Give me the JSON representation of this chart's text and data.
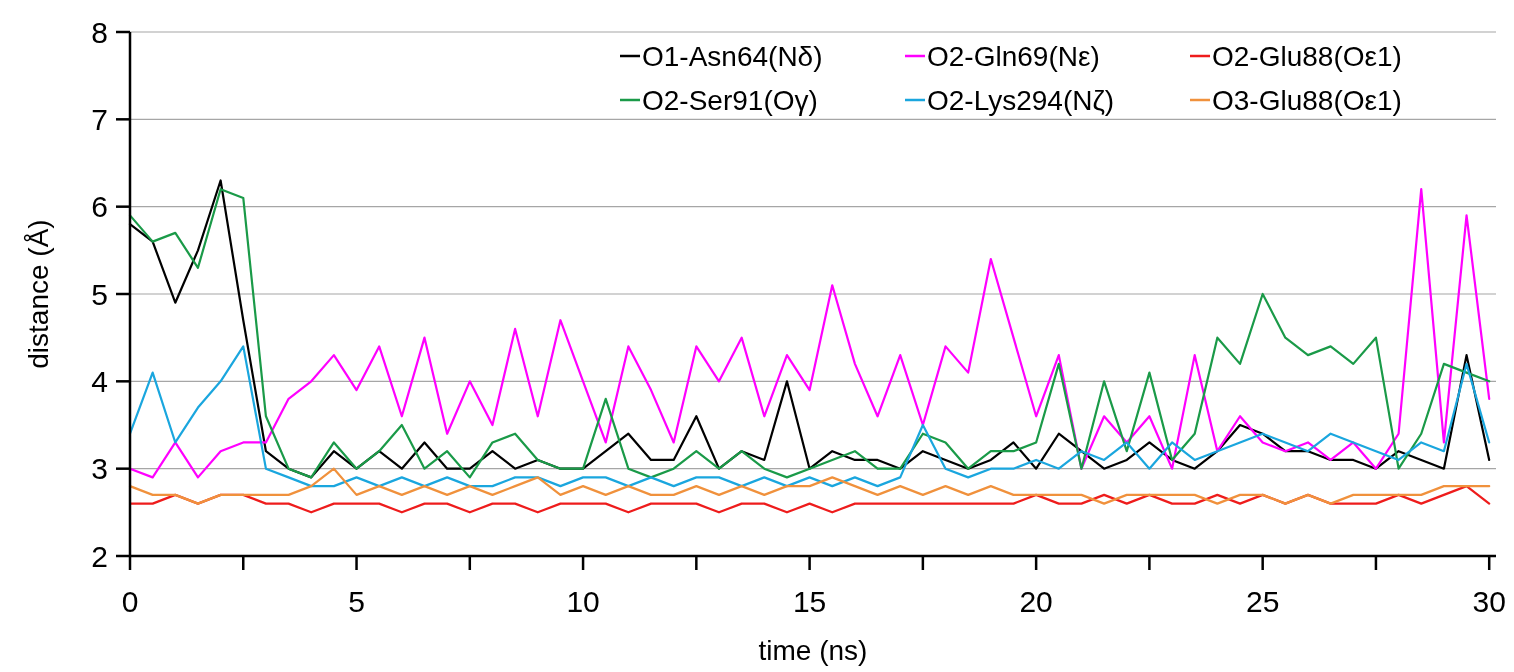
{
  "chart_data": {
    "type": "line",
    "xlabel": "time (ns)",
    "ylabel": "distance (Å)",
    "x": [
      0,
      0.5,
      1,
      1.5,
      2,
      2.5,
      3,
      3.5,
      4,
      4.5,
      5,
      5.5,
      6,
      6.5,
      7,
      7.5,
      8,
      8.5,
      9,
      9.5,
      10,
      10.5,
      11,
      11.5,
      12,
      12.5,
      13,
      13.5,
      14,
      14.5,
      15,
      15.5,
      16,
      16.5,
      17,
      17.5,
      18,
      18.5,
      19,
      19.5,
      20,
      20.5,
      21,
      21.5,
      22,
      22.5,
      23,
      23.5,
      24,
      24.5,
      25,
      25.5,
      26,
      26.5,
      27,
      27.5,
      28,
      28.5,
      29,
      29.5,
      30
    ],
    "xlim": [
      0,
      30.15
    ],
    "ylim": [
      2,
      8
    ],
    "xticks": [
      0,
      {
        "value": 2.5,
        "label": null
      },
      5,
      {
        "value": 7.5,
        "label": null
      },
      10,
      {
        "value": 12.5,
        "label": null
      },
      15,
      {
        "value": 17.5,
        "label": null
      },
      20,
      {
        "value": 22.5,
        "label": null
      },
      25,
      {
        "value": 27.5,
        "label": null
      },
      30
    ],
    "yticks": [
      2,
      3,
      4,
      5,
      6,
      7,
      8
    ],
    "grid": "y",
    "legend": "top right",
    "marker": "none",
    "line_style": "solid",
    "series": [
      {
        "name": "O1-Asn64(Nδ)",
        "color": "#000000",
        "values": [
          5.8,
          5.6,
          4.9,
          5.5,
          6.3,
          4.7,
          3.2,
          3.0,
          2.9,
          3.2,
          3.0,
          3.2,
          3.0,
          3.3,
          3.0,
          3.0,
          3.2,
          3.0,
          3.1,
          3.0,
          3.0,
          3.2,
          3.4,
          3.1,
          3.1,
          3.6,
          3.0,
          3.2,
          3.1,
          4.0,
          3.0,
          3.2,
          3.1,
          3.1,
          3.0,
          3.2,
          3.1,
          3.0,
          3.1,
          3.3,
          3.0,
          3.4,
          3.2,
          3.0,
          3.1,
          3.3,
          3.1,
          3.0,
          3.2,
          3.5,
          3.4,
          3.2,
          3.2,
          3.1,
          3.1,
          3.0,
          3.2,
          3.1,
          3.0,
          4.3,
          3.1
        ]
      },
      {
        "name": "O2-Gln69(Nε)",
        "color": "#ff00ff",
        "values": [
          3.0,
          2.9,
          3.3,
          2.9,
          3.2,
          3.3,
          3.3,
          3.8,
          4.0,
          4.3,
          3.9,
          4.4,
          3.6,
          4.5,
          3.4,
          4.0,
          3.5,
          4.6,
          3.6,
          4.7,
          4.0,
          3.3,
          4.4,
          3.9,
          3.3,
          4.4,
          4.0,
          4.5,
          3.6,
          4.3,
          3.9,
          5.1,
          4.2,
          3.6,
          4.3,
          3.5,
          4.4,
          4.1,
          5.4,
          4.5,
          3.6,
          4.3,
          3.0,
          3.6,
          3.3,
          3.6,
          3.0,
          4.3,
          3.2,
          3.6,
          3.3,
          3.2,
          3.3,
          3.1,
          3.3,
          3.0,
          3.4,
          6.2,
          3.3,
          5.9,
          3.8
        ]
      },
      {
        "name": "O2-Glu88(Oε1)",
        "color": "#ee1c1c",
        "values": [
          2.6,
          2.6,
          2.7,
          2.6,
          2.7,
          2.7,
          2.6,
          2.6,
          2.5,
          2.6,
          2.6,
          2.6,
          2.5,
          2.6,
          2.6,
          2.5,
          2.6,
          2.6,
          2.5,
          2.6,
          2.6,
          2.6,
          2.5,
          2.6,
          2.6,
          2.6,
          2.5,
          2.6,
          2.6,
          2.5,
          2.6,
          2.5,
          2.6,
          2.6,
          2.6,
          2.6,
          2.6,
          2.6,
          2.6,
          2.6,
          2.7,
          2.6,
          2.6,
          2.7,
          2.6,
          2.7,
          2.6,
          2.6,
          2.7,
          2.6,
          2.7,
          2.6,
          2.7,
          2.6,
          2.6,
          2.6,
          2.7,
          2.6,
          2.7,
          2.8,
          2.6
        ]
      },
      {
        "name": "O2-Ser91(Oγ)",
        "color": "#1a9a48",
        "values": [
          5.9,
          5.6,
          5.7,
          5.3,
          6.2,
          6.1,
          3.6,
          3.0,
          2.9,
          3.3,
          3.0,
          3.2,
          3.5,
          3.0,
          3.2,
          2.9,
          3.3,
          3.4,
          3.1,
          3.0,
          3.0,
          3.8,
          3.0,
          2.9,
          3.0,
          3.2,
          3.0,
          3.2,
          3.0,
          2.9,
          3.0,
          3.1,
          3.2,
          3.0,
          3.0,
          3.4,
          3.3,
          3.0,
          3.2,
          3.2,
          3.3,
          4.2,
          3.0,
          4.0,
          3.2,
          4.1,
          3.1,
          3.4,
          4.5,
          4.2,
          5.0,
          4.5,
          4.3,
          4.4,
          4.2,
          4.5,
          3.0,
          3.4,
          4.2,
          4.1,
          4.0
        ]
      },
      {
        "name": "O2-Lys294(Nζ)",
        "color": "#1aa6de",
        "values": [
          3.4,
          4.1,
          3.3,
          3.7,
          4.0,
          4.4,
          3.0,
          2.9,
          2.8,
          2.8,
          2.9,
          2.8,
          2.9,
          2.8,
          2.9,
          2.8,
          2.8,
          2.9,
          2.9,
          2.8,
          2.9,
          2.9,
          2.8,
          2.9,
          2.8,
          2.9,
          2.9,
          2.8,
          2.9,
          2.8,
          2.9,
          2.8,
          2.9,
          2.8,
          2.9,
          3.5,
          3.0,
          2.9,
          3.0,
          3.0,
          3.1,
          3.0,
          3.2,
          3.1,
          3.3,
          3.0,
          3.3,
          3.1,
          3.2,
          3.3,
          3.4,
          3.3,
          3.2,
          3.4,
          3.3,
          3.2,
          3.1,
          3.3,
          3.2,
          4.2,
          3.3
        ]
      },
      {
        "name": "O3-Glu88(Oε1)",
        "color": "#f0913c",
        "values": [
          2.8,
          2.7,
          2.7,
          2.6,
          2.7,
          2.7,
          2.7,
          2.7,
          2.8,
          3.0,
          2.7,
          2.8,
          2.7,
          2.8,
          2.7,
          2.8,
          2.7,
          2.8,
          2.9,
          2.7,
          2.8,
          2.7,
          2.8,
          2.7,
          2.7,
          2.8,
          2.7,
          2.8,
          2.7,
          2.8,
          2.8,
          2.9,
          2.8,
          2.7,
          2.8,
          2.7,
          2.8,
          2.7,
          2.8,
          2.7,
          2.7,
          2.7,
          2.7,
          2.6,
          2.7,
          2.7,
          2.7,
          2.7,
          2.6,
          2.7,
          2.7,
          2.6,
          2.7,
          2.6,
          2.7,
          2.7,
          2.7,
          2.7,
          2.8,
          2.8,
          2.8
        ]
      }
    ]
  }
}
